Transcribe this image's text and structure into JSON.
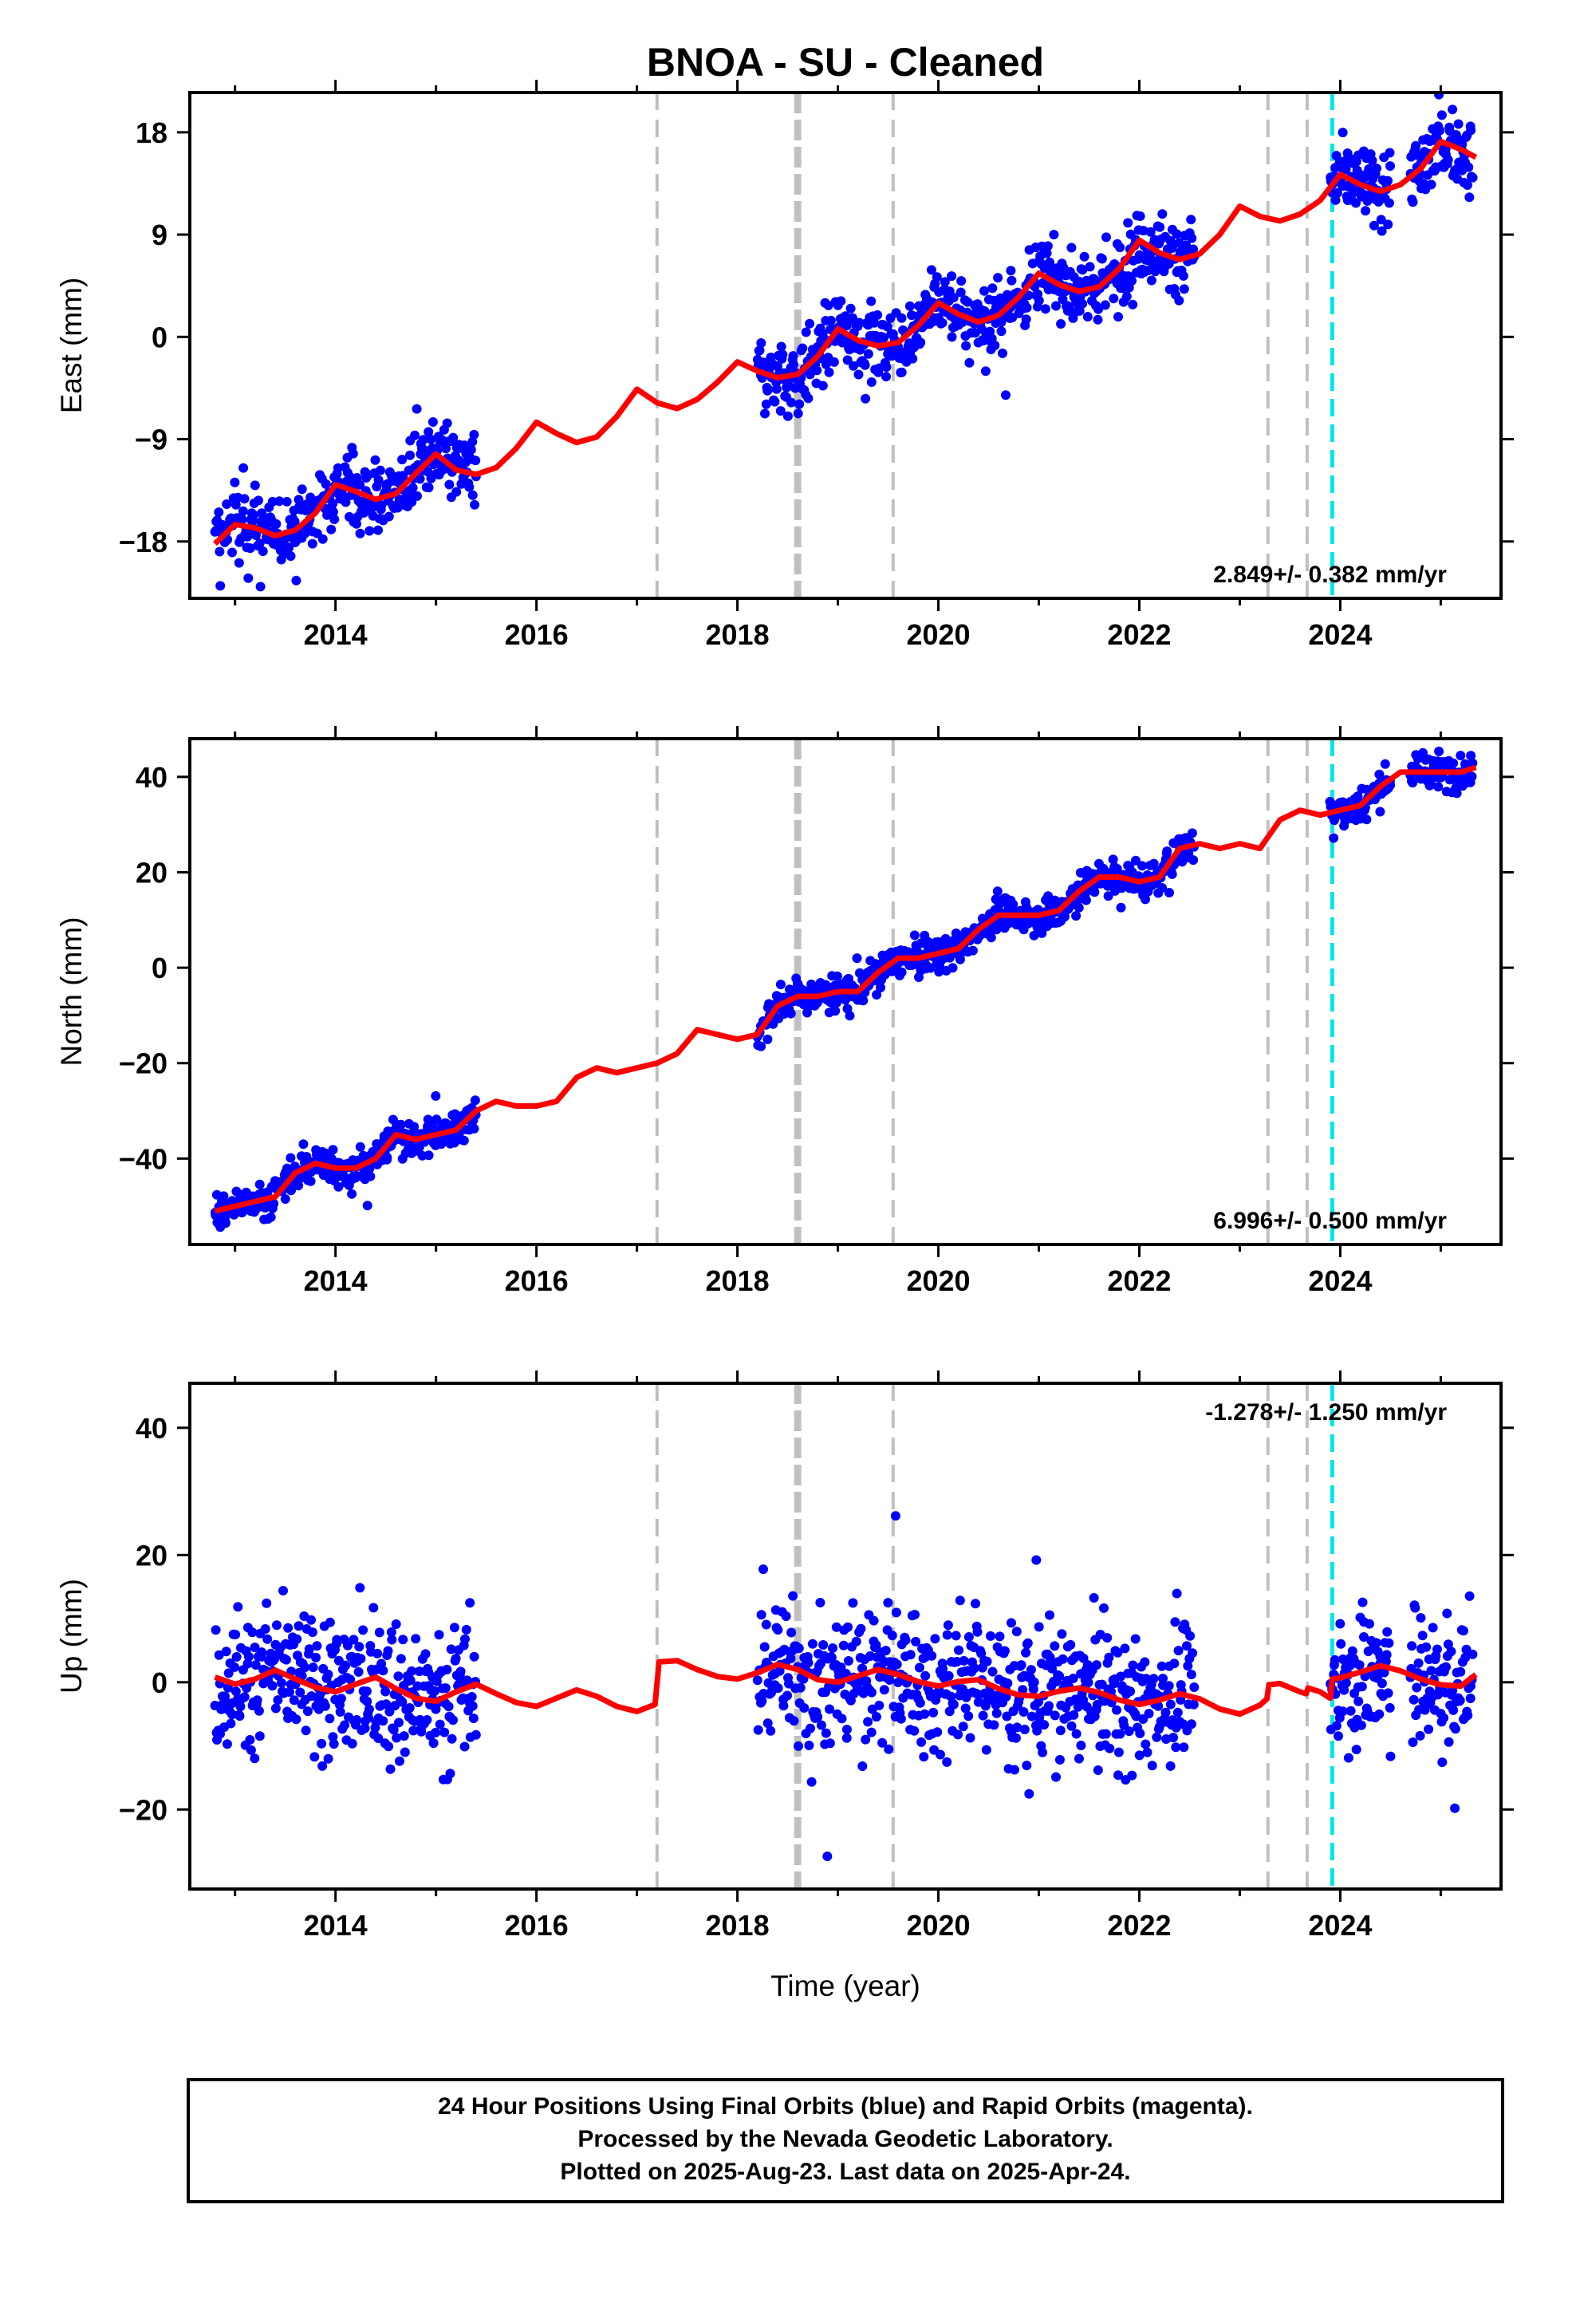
{
  "title": "BNOA  - SU - Cleaned",
  "xlabel": "Time (year)",
  "footer": [
    "24 Hour Positions Using Final Orbits (blue) and Rapid Orbits (magenta).",
    "Processed by the Nevada Geodetic Laboratory.",
    "Plotted on 2025-Aug-23. Last data on 2025-Apr-24."
  ],
  "colors": {
    "points": "#0000ff",
    "model": "#ff0000",
    "equipment_change": "#c0c0c0",
    "earthquake": "#00e5ee",
    "frame": "#000000"
  },
  "chart_data": [
    {
      "type": "scatter",
      "panel": "east",
      "ylabel": "East (mm)",
      "xlim": [
        2012.55,
        2025.6
      ],
      "ylim": [
        -23,
        21.5
      ],
      "xticks": [
        2014,
        2016,
        2018,
        2020,
        2022,
        2024
      ],
      "yticks": [
        -18,
        -9,
        0,
        9,
        18
      ],
      "grid": false,
      "rate_text": "2.849+/- 0.382 mm/yr",
      "rate_pos": "bottom-right",
      "data_segments": [
        [
          2012.8,
          2015.4
        ],
        [
          2018.2,
          2022.55
        ],
        [
          2023.9,
          2024.5
        ],
        [
          2024.7,
          2025.32
        ]
      ],
      "model_curve": {
        "x": [
          2012.8,
          2013.0,
          2013.2,
          2013.4,
          2013.6,
          2013.8,
          2014.0,
          2014.2,
          2014.4,
          2014.6,
          2014.8,
          2015.0,
          2015.2,
          2015.4,
          2015.6,
          2015.8,
          2016.0,
          2016.2,
          2016.4,
          2016.6,
          2016.8,
          2017.0,
          2017.2,
          2017.4,
          2017.6,
          2017.8,
          2018.0,
          2018.2,
          2018.4,
          2018.6,
          2018.8,
          2019.0,
          2019.2,
          2019.4,
          2019.6,
          2019.8,
          2020.0,
          2020.2,
          2020.4,
          2020.6,
          2020.8,
          2021.0,
          2021.2,
          2021.4,
          2021.6,
          2021.8,
          2022.0,
          2022.2,
          2022.4,
          2022.6,
          2022.8,
          2023.0,
          2023.2,
          2023.4,
          2023.6,
          2023.8,
          2024.0,
          2024.2,
          2024.4,
          2024.6,
          2024.8,
          2025.0,
          2025.2,
          2025.35
        ],
        "y": [
          -18.2,
          -16.5,
          -16.8,
          -17.5,
          -17.0,
          -15.5,
          -13.0,
          -13.6,
          -14.3,
          -13.8,
          -12.0,
          -10.3,
          -11.7,
          -12.1,
          -11.5,
          -9.8,
          -7.5,
          -8.5,
          -9.3,
          -8.8,
          -7.0,
          -4.6,
          -5.8,
          -6.3,
          -5.5,
          -4.0,
          -2.2,
          -3.0,
          -3.6,
          -3.3,
          -1.7,
          0.7,
          -0.3,
          -0.8,
          -0.5,
          1.0,
          3.0,
          2.0,
          1.3,
          1.9,
          3.5,
          5.6,
          4.6,
          4.0,
          4.4,
          6.0,
          8.5,
          7.4,
          6.8,
          7.3,
          9.0,
          11.5,
          10.6,
          10.2,
          10.8,
          12.0,
          14.3,
          13.4,
          12.8,
          13.4,
          14.8,
          17.2,
          16.5,
          15.8
        ]
      },
      "points_noise_mm": 1.6,
      "equipment_changes": [
        2017.2,
        2018.6,
        2019.55,
        2023.28,
        2023.67
      ],
      "earthquakes": [
        2023.92
      ]
    },
    {
      "type": "scatter",
      "panel": "north",
      "ylabel": "North (mm)",
      "xlim": [
        2012.55,
        2025.6
      ],
      "ylim": [
        -58,
        48
      ],
      "xticks": [
        2014,
        2016,
        2018,
        2020,
        2022,
        2024
      ],
      "yticks": [
        -40,
        -20,
        0,
        20,
        40
      ],
      "grid": false,
      "rate_text": "6.996+/- 0.500 mm/yr",
      "rate_pos": "bottom-right",
      "data_segments": [
        [
          2012.8,
          2015.4
        ],
        [
          2018.2,
          2022.55
        ],
        [
          2023.9,
          2024.5
        ],
        [
          2024.7,
          2025.32
        ]
      ],
      "model_curve": {
        "x": [
          2012.8,
          2013.0,
          2013.2,
          2013.4,
          2013.6,
          2013.8,
          2014.0,
          2014.2,
          2014.4,
          2014.6,
          2014.8,
          2015.0,
          2015.2,
          2015.4,
          2015.6,
          2015.8,
          2016.0,
          2016.2,
          2016.4,
          2016.6,
          2016.8,
          2017.0,
          2017.2,
          2017.4,
          2017.6,
          2017.8,
          2018.0,
          2018.2,
          2018.4,
          2018.6,
          2018.8,
          2019.0,
          2019.2,
          2019.4,
          2019.6,
          2019.8,
          2020.0,
          2020.2,
          2020.4,
          2020.6,
          2020.8,
          2021.0,
          2021.2,
          2021.4,
          2021.6,
          2021.8,
          2022.0,
          2022.2,
          2022.4,
          2022.6,
          2022.8,
          2023.0,
          2023.2,
          2023.4,
          2023.6,
          2023.8,
          2024.0,
          2024.2,
          2024.4,
          2024.6,
          2024.8,
          2025.0,
          2025.2,
          2025.35
        ],
        "y": [
          -51,
          -50,
          -49,
          -48,
          -43,
          -41,
          -42,
          -42,
          -40,
          -35,
          -36,
          -35,
          -34,
          -30,
          -28,
          -29,
          -29,
          -28,
          -23,
          -21,
          -22,
          -21,
          -20,
          -18,
          -13,
          -14,
          -15,
          -14,
          -8,
          -6,
          -6,
          -5,
          -5,
          -1,
          2,
          2,
          3,
          4,
          8,
          11,
          11,
          11,
          12,
          16,
          19,
          19,
          18,
          19,
          25,
          26,
          25,
          26,
          25,
          31,
          33,
          32,
          33,
          34,
          38,
          41,
          41,
          41,
          41,
          42
        ]
      },
      "points_noise_mm": 1.8,
      "equipment_changes": [
        2017.2,
        2018.6,
        2019.55,
        2023.28,
        2023.67
      ],
      "earthquakes": [
        2023.92
      ]
    },
    {
      "type": "scatter",
      "panel": "up",
      "ylabel": "Up (mm)",
      "xlim": [
        2012.55,
        2025.6
      ],
      "ylim": [
        -32.5,
        47
      ],
      "xticks": [
        2014,
        2016,
        2018,
        2020,
        2022,
        2024
      ],
      "yticks": [
        -20,
        0,
        20,
        40
      ],
      "grid": false,
      "rate_text": "-1.278+/- 1.250 mm/yr",
      "rate_pos": "top-right",
      "data_segments": [
        [
          2012.8,
          2015.4
        ],
        [
          2018.2,
          2022.55
        ],
        [
          2023.9,
          2024.5
        ],
        [
          2024.7,
          2025.32
        ]
      ],
      "model_curve": {
        "x": [
          2012.8,
          2013.0,
          2013.2,
          2013.4,
          2013.6,
          2013.8,
          2014.0,
          2014.2,
          2014.4,
          2014.6,
          2014.8,
          2015.0,
          2015.2,
          2015.4,
          2015.6,
          2015.8,
          2016.0,
          2016.2,
          2016.4,
          2016.6,
          2016.8,
          2017.0,
          2017.18,
          2017.22,
          2017.4,
          2017.6,
          2017.8,
          2018.0,
          2018.2,
          2018.4,
          2018.6,
          2018.8,
          2019.0,
          2019.2,
          2019.4,
          2019.6,
          2019.8,
          2020.0,
          2020.2,
          2020.4,
          2020.6,
          2020.8,
          2021.0,
          2021.2,
          2021.4,
          2021.6,
          2021.8,
          2022.0,
          2022.2,
          2022.4,
          2022.6,
          2022.8,
          2023.0,
          2023.2,
          2023.27,
          2023.29,
          2023.4,
          2023.6,
          2023.66,
          2023.68,
          2023.8,
          2023.9,
          2023.92,
          2024.0,
          2024.2,
          2024.4,
          2024.6,
          2024.8,
          2025.0,
          2025.2,
          2025.35
        ],
        "y": [
          0.8,
          -0.3,
          0.5,
          1.9,
          0.5,
          -0.8,
          -1.5,
          -0.3,
          0.8,
          -1.0,
          -2.5,
          -3.0,
          -1.5,
          -0.3,
          -1.8,
          -3.2,
          -3.8,
          -2.5,
          -1.2,
          -2.2,
          -3.8,
          -4.6,
          -3.5,
          3.2,
          3.4,
          2.0,
          0.9,
          0.5,
          1.5,
          2.8,
          2.0,
          0.4,
          0.0,
          1.0,
          2.0,
          1.2,
          0.1,
          -0.6,
          0.1,
          0.4,
          -1.0,
          -2.0,
          -2.2,
          -1.4,
          -0.9,
          -1.6,
          -2.8,
          -3.5,
          -2.8,
          -1.8,
          -2.6,
          -4.2,
          -5.0,
          -3.6,
          -2.6,
          -0.4,
          -0.2,
          -1.5,
          -1.8,
          -0.9,
          -1.5,
          -2.5,
          0.5,
          0.7,
          1.6,
          2.6,
          1.8,
          0.5,
          -0.4,
          -0.6,
          1.2
        ]
      },
      "points_noise_mm": 5.5,
      "equipment_changes": [
        2017.2,
        2018.6,
        2019.55,
        2023.28,
        2023.67
      ],
      "earthquakes": [
        2023.92
      ]
    }
  ]
}
